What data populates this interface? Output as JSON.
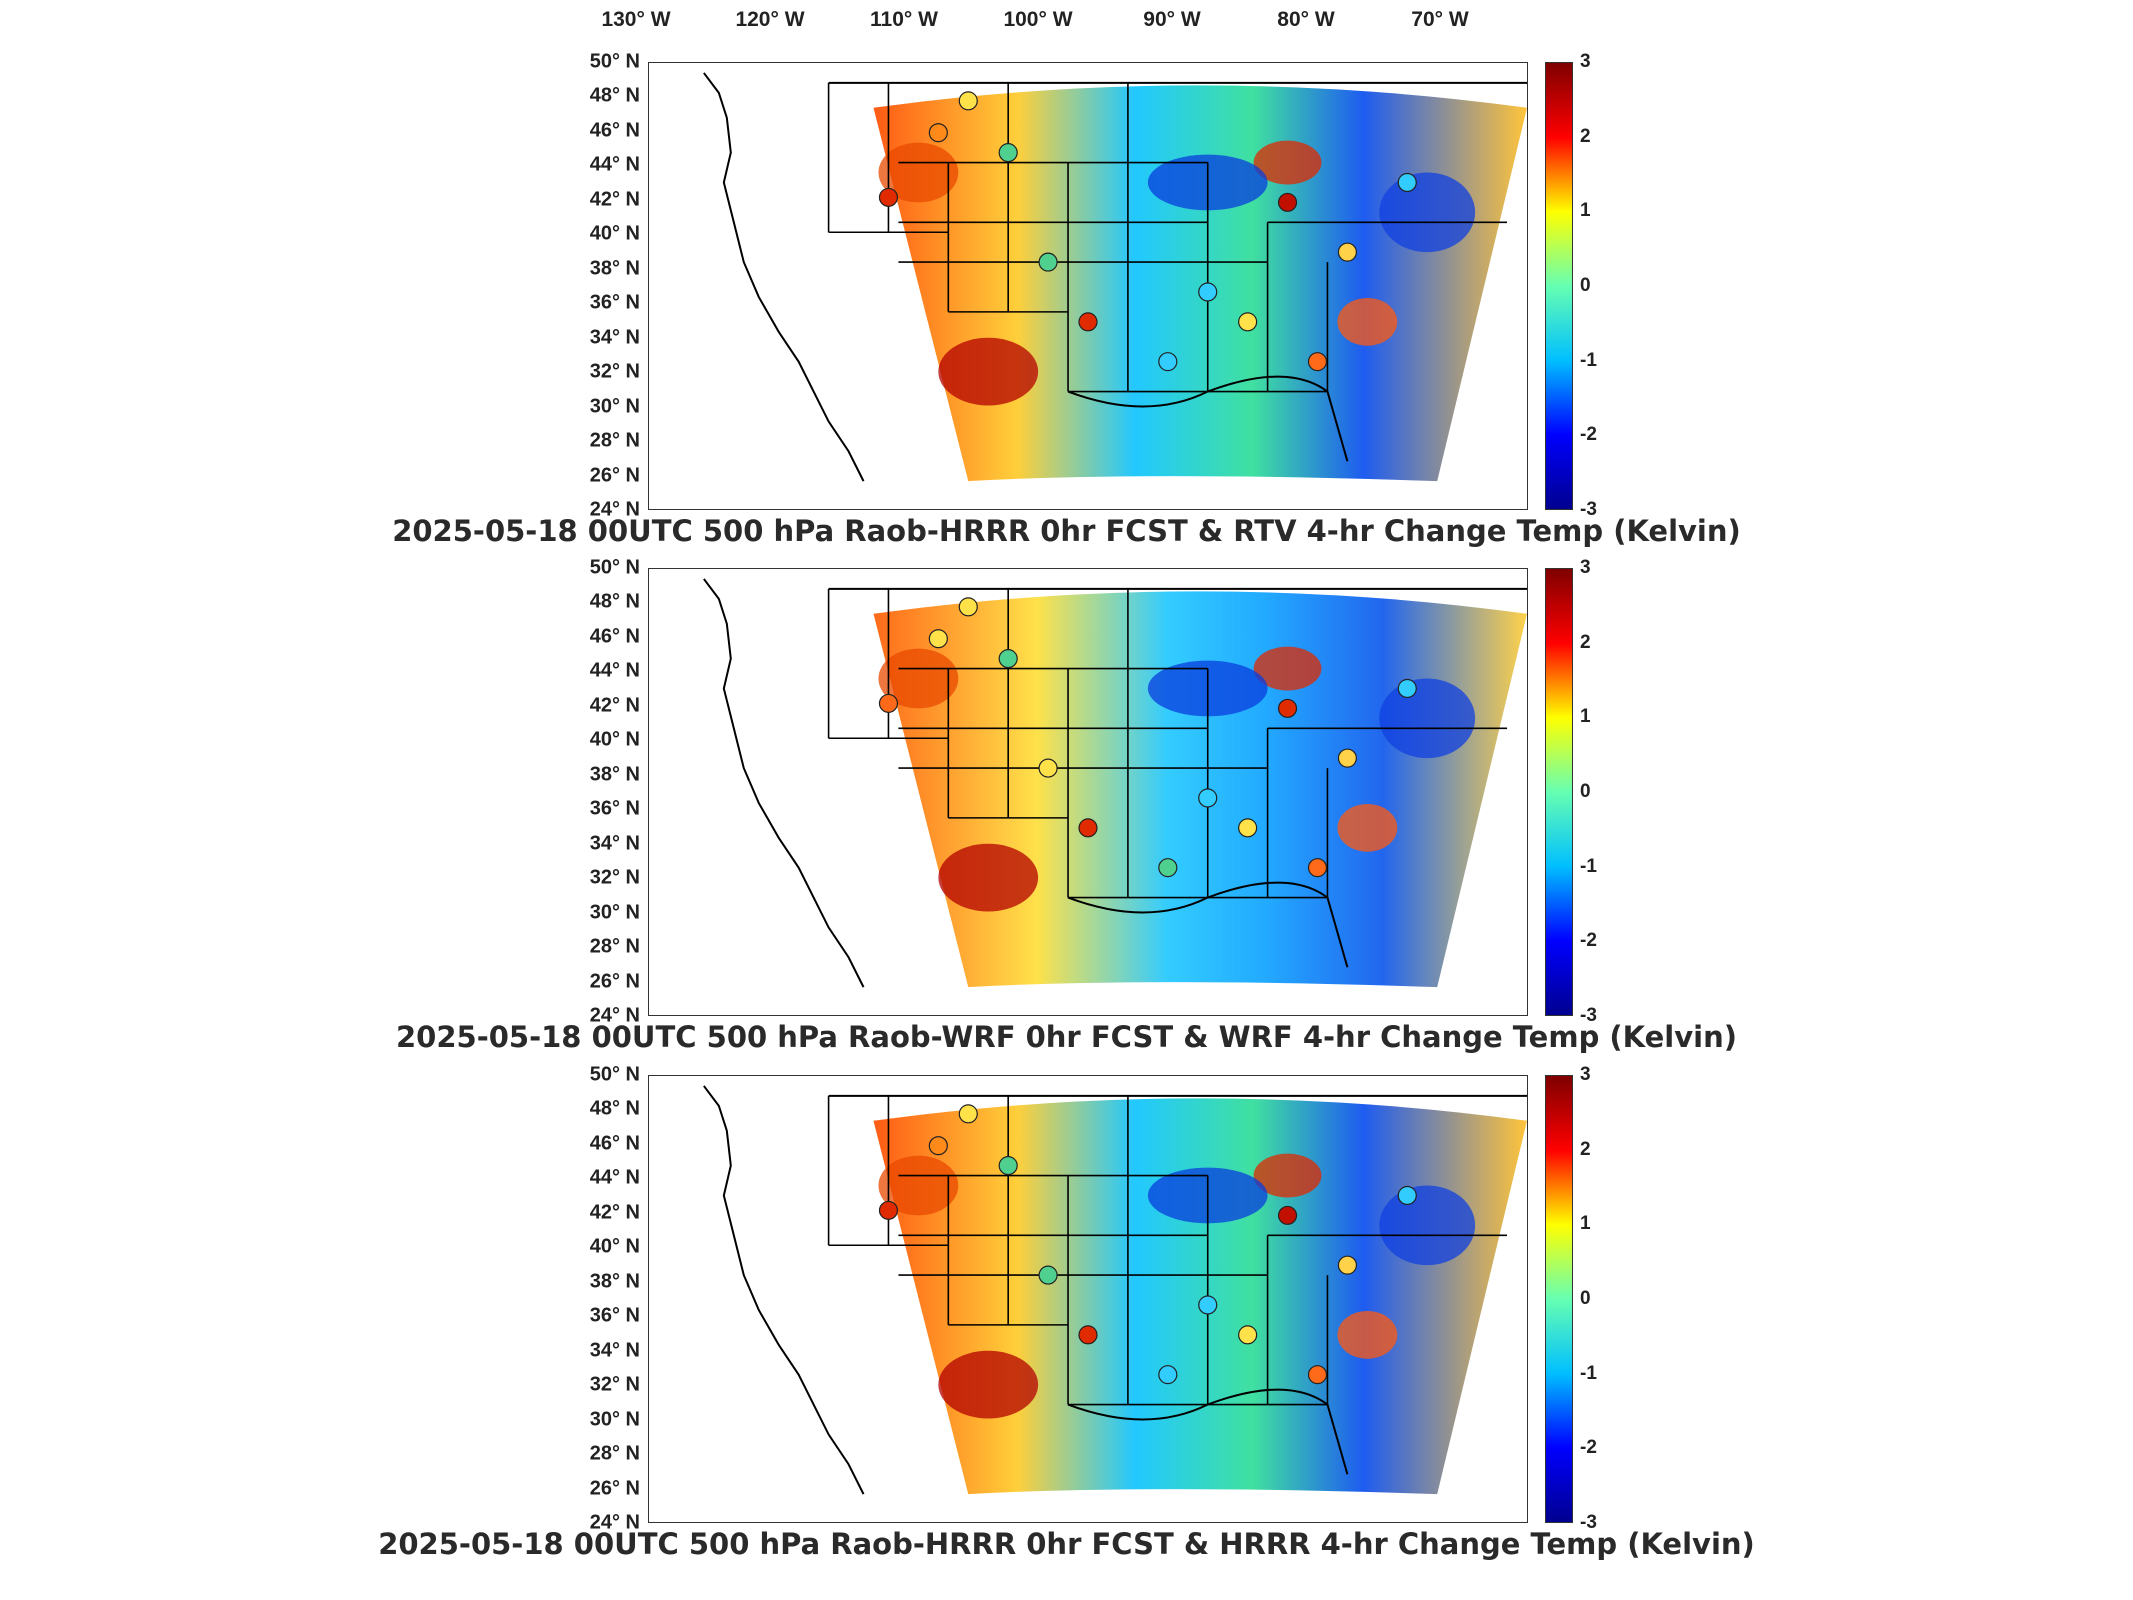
{
  "longitude_labels": [
    "130° W",
    "120° W",
    "110° W",
    "100° W",
    "90° W",
    "80° W",
    "70° W"
  ],
  "latitude_labels": [
    "50° N",
    "48° N",
    "46° N",
    "44° N",
    "42° N",
    "40° N",
    "38° N",
    "36° N",
    "34° N",
    "32° N",
    "30° N",
    "28° N",
    "26° N",
    "24° N"
  ],
  "colorbar": {
    "ticks": [
      "3",
      "2",
      "1",
      "0",
      "-1",
      "-2",
      "-3"
    ],
    "range": [
      -3,
      3
    ],
    "colors": [
      "#7f0000",
      "#ff0000",
      "#ffff00",
      "#66ffb2",
      "#00bfff",
      "#0000ff",
      "#00008f"
    ]
  },
  "panels": [
    {
      "title": "2025-05-18 00UTC 500 hPa Raob-HRRR 0hr FCST & RTV 4-hr Change Temp (Kelvin)"
    },
    {
      "title": "2025-05-18 00UTC 500 hPa Raob-WRF 0hr FCST & WRF 4-hr Change Temp (Kelvin)"
    },
    {
      "title": "2025-05-18 00UTC 500 hPa Raob-HRRR 0hr FCST & HRRR 4-hr Change Temp (Kelvin)"
    }
  ]
}
